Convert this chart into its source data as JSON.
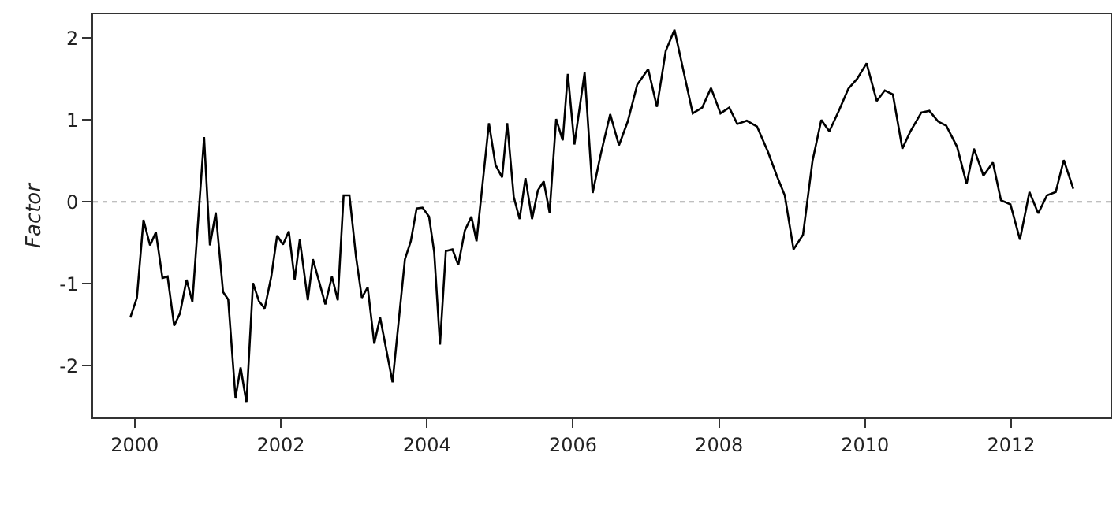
{
  "chart_data": {
    "type": "line",
    "ylabel": "Factor",
    "xlim": [
      1999.43,
      2013.36
    ],
    "ylim": [
      -2.63,
      2.29
    ],
    "xticks": [
      2000,
      2002,
      2004,
      2006,
      2008,
      2010,
      2012
    ],
    "yticks": [
      -2,
      -1,
      0,
      1,
      2
    ],
    "grid": false,
    "marker": "none",
    "line_style": "solid",
    "ref_lines": [
      {
        "axis": "y",
        "value": 0,
        "color": "#aaaaaa",
        "line_style": "dotted"
      }
    ],
    "series": [
      {
        "color": "#000000",
        "x": [
          1999.94,
          2000.03,
          2000.12,
          2000.21,
          2000.29,
          2000.38,
          2000.45,
          2000.54,
          2000.62,
          2000.71,
          2000.79,
          2000.95,
          2001.03,
          2001.11,
          2001.21,
          2001.28,
          2001.38,
          2001.45,
          2001.53,
          2001.62,
          2001.7,
          2001.78,
          2001.87,
          2001.95,
          2002.03,
          2002.11,
          2002.19,
          2002.26,
          2002.37,
          2002.44,
          2002.53,
          2002.61,
          2002.7,
          2002.78,
          2002.86,
          2002.94,
          2003.03,
          2003.11,
          2003.19,
          2003.28,
          2003.36,
          2003.53,
          2003.7,
          2003.78,
          2003.86,
          2003.94,
          2004.03,
          2004.1,
          2004.18,
          2004.26,
          2004.35,
          2004.43,
          2004.52,
          2004.61,
          2004.68,
          2004.85,
          2004.94,
          2005.03,
          2005.1,
          2005.19,
          2005.27,
          2005.35,
          2005.44,
          2005.52,
          2005.6,
          2005.68,
          2005.77,
          2005.86,
          2005.93,
          2006.02,
          2006.16,
          2006.27,
          2006.38,
          2006.51,
          2006.63,
          2006.75,
          2006.88,
          2007.03,
          2007.15,
          2007.27,
          2007.39,
          2007.64,
          2007.77,
          2007.89,
          2008.02,
          2008.14,
          2008.25,
          2008.38,
          2008.52,
          2008.67,
          2008.79,
          2008.9,
          2009.02,
          2009.15,
          2009.28,
          2009.4,
          2009.51,
          2009.64,
          2009.77,
          2009.89,
          2010.02,
          2010.16,
          2010.27,
          2010.38,
          2010.51,
          2010.62,
          2010.77,
          2010.88,
          2011.0,
          2011.11,
          2011.26,
          2011.39,
          2011.49,
          2011.62,
          2011.75,
          2011.86,
          2011.99,
          2012.12,
          2012.25,
          2012.37,
          2012.49,
          2012.61,
          2012.72,
          2012.85
        ],
        "values": [
          -1.41,
          -1.17,
          -0.22,
          -0.53,
          -0.37,
          -0.93,
          -0.91,
          -1.51,
          -1.36,
          -0.95,
          -1.22,
          0.79,
          -0.53,
          -0.13,
          -1.1,
          -1.19,
          -2.39,
          -2.02,
          -2.45,
          -0.99,
          -1.21,
          -1.3,
          -0.91,
          -0.41,
          -0.52,
          -0.36,
          -0.95,
          -0.46,
          -1.2,
          -0.7,
          -0.99,
          -1.25,
          -0.91,
          -1.2,
          0.08,
          0.08,
          -0.67,
          -1.17,
          -1.04,
          -1.73,
          -1.41,
          -2.2,
          -0.7,
          -0.48,
          -0.08,
          -0.07,
          -0.18,
          -0.61,
          -1.74,
          -0.6,
          -0.58,
          -0.77,
          -0.35,
          -0.18,
          -0.48,
          0.96,
          0.45,
          0.3,
          0.96,
          0.06,
          -0.21,
          0.29,
          -0.21,
          0.14,
          0.25,
          -0.13,
          1.01,
          0.75,
          1.56,
          0.7,
          1.58,
          0.11,
          0.58,
          1.07,
          0.69,
          0.98,
          1.43,
          1.62,
          1.16,
          1.84,
          2.1,
          1.08,
          1.15,
          1.39,
          1.08,
          1.15,
          0.95,
          0.99,
          0.92,
          0.61,
          0.32,
          0.08,
          -0.58,
          -0.4,
          0.5,
          1.0,
          0.86,
          1.11,
          1.38,
          1.5,
          1.69,
          1.23,
          1.36,
          1.31,
          0.65,
          0.86,
          1.09,
          1.11,
          0.98,
          0.93,
          0.67,
          0.22,
          0.65,
          0.32,
          0.48,
          0.02,
          -0.03,
          -0.46,
          0.12,
          -0.14,
          0.08,
          0.12,
          0.51,
          0.16
        ]
      }
    ]
  }
}
